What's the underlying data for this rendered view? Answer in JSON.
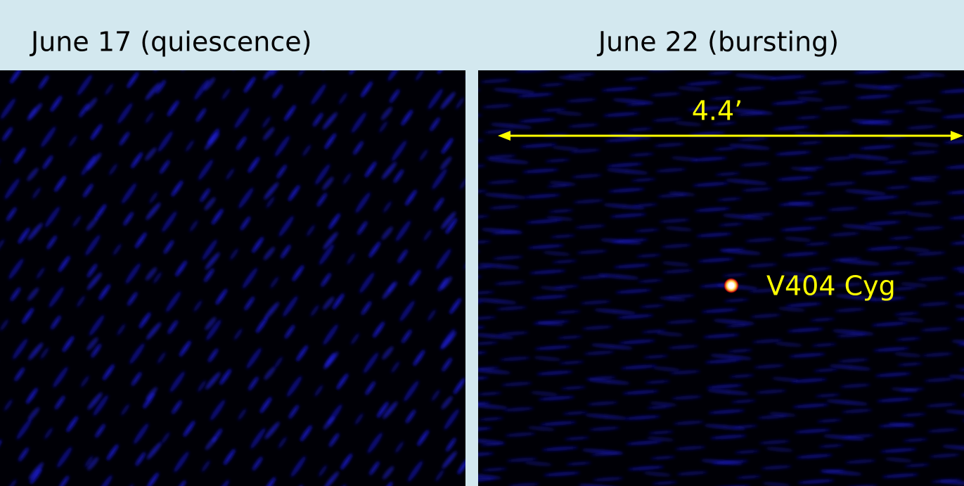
{
  "panels": [
    {
      "title": "June 17 (quiescence)"
    },
    {
      "title": "June 22 (bursting)",
      "scale_label": "4.4’",
      "source_label": "V404 Cyg"
    }
  ]
}
